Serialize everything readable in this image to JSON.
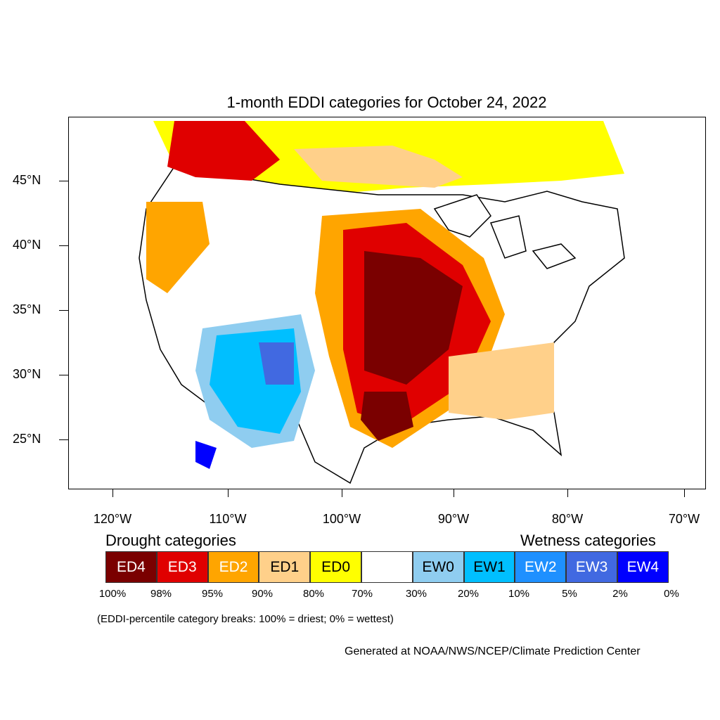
{
  "title": "1-month EDDI categories for October 24, 2022",
  "lat_labels": [
    "45°N",
    "40°N",
    "35°N",
    "30°N",
    "25°N"
  ],
  "lon_labels": [
    "120°W",
    "110°W",
    "100°W",
    "90°W",
    "80°W",
    "70°W"
  ],
  "legend": {
    "drought_heading": "Drought categories",
    "wetness_heading": "Wetness categories",
    "categories": [
      {
        "label": "ED4",
        "color": "#7a0000",
        "text_color": "#ffffff"
      },
      {
        "label": "ED3",
        "color": "#e00000",
        "text_color": "#ffffff"
      },
      {
        "label": "ED2",
        "color": "#ffa500",
        "text_color": "#ffffff"
      },
      {
        "label": "ED1",
        "color": "#ffd08a",
        "text_color": "#000000"
      },
      {
        "label": "ED0",
        "color": "#ffff00",
        "text_color": "#000000"
      },
      {
        "label": "",
        "color": "#ffffff",
        "text_color": "#000000"
      },
      {
        "label": "EW0",
        "color": "#8fcdf0",
        "text_color": "#000000"
      },
      {
        "label": "EW1",
        "color": "#00bfff",
        "text_color": "#000000"
      },
      {
        "label": "EW2",
        "color": "#1e90ff",
        "text_color": "#ffffff"
      },
      {
        "label": "EW3",
        "color": "#4169e1",
        "text_color": "#ffffff"
      },
      {
        "label": "EW4",
        "color": "#0000ff",
        "text_color": "#ffffff"
      }
    ],
    "percentiles": [
      "100%",
      "98%",
      "95%",
      "90%",
      "80%",
      "70%",
      "30%",
      "20%",
      "10%",
      "5%",
      "2%",
      "0%"
    ]
  },
  "note": "(EDDI-percentile category breaks: 100% = driest; 0% = wettest)",
  "credit": "Generated at NOAA/NWS/NCEP/Climate Prediction Center"
}
